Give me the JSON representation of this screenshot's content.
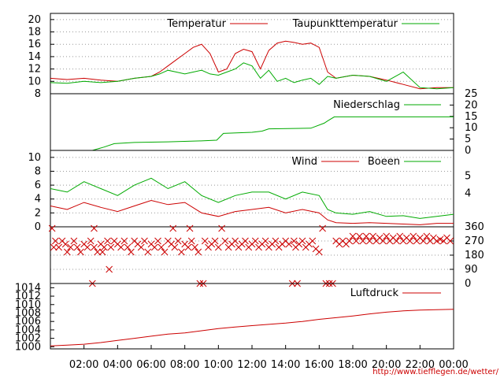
{
  "colors": {
    "series1": "#cc0000",
    "series2": "#00aa00",
    "grid": "#999999",
    "frame": "#000000",
    "url": "#cc0000"
  },
  "url_text": "http://www.tiefflegen.de/wetter/",
  "chart_data": [
    {
      "panel": "temperature",
      "type": "line",
      "ylim": [
        8,
        21
      ],
      "yticks_left": [
        "20",
        "18",
        "16",
        "14",
        "12",
        "10",
        "8"
      ],
      "grid": true,
      "legend_placement": "top",
      "series": [
        {
          "name": "Temperatur",
          "color": "#cc0000",
          "x": [
            0,
            1,
            2,
            3,
            4,
            5,
            6,
            6.5,
            7,
            7.5,
            8,
            8.5,
            9,
            9.5,
            10,
            10.5,
            11,
            11.5,
            12,
            12.5,
            13,
            13.5,
            14,
            14.5,
            15,
            15.5,
            16,
            16.5,
            17,
            18,
            19,
            20,
            21,
            22,
            23,
            24
          ],
          "y": [
            10.5,
            10.3,
            10.5,
            10.2,
            10.0,
            10.5,
            10.8,
            11.5,
            12.5,
            13.5,
            14.5,
            15.5,
            16.0,
            14.5,
            11.5,
            12.0,
            14.5,
            15.2,
            14.8,
            12.0,
            15.0,
            16.2,
            16.5,
            16.3,
            16.0,
            16.2,
            15.5,
            11.5,
            10.5,
            11.0,
            10.8,
            10.2,
            9.5,
            8.8,
            9.0,
            9.0
          ]
        },
        {
          "name": "Taupunkttemperatur",
          "color": "#00aa00",
          "x": [
            0,
            1,
            2,
            3,
            4,
            5,
            6,
            6.5,
            7,
            7.5,
            8,
            8.5,
            9,
            9.5,
            10,
            10.5,
            11,
            11.5,
            12,
            12.5,
            13,
            13.5,
            14,
            14.5,
            15,
            15.5,
            16,
            16.5,
            17,
            18,
            19,
            20,
            21,
            22,
            23,
            24
          ],
          "y": [
            9.8,
            9.7,
            10.0,
            9.8,
            10.0,
            10.5,
            10.8,
            11.2,
            11.8,
            11.5,
            11.2,
            11.5,
            11.8,
            11.2,
            11.0,
            11.5,
            12.0,
            13.0,
            12.5,
            10.5,
            11.8,
            10.0,
            10.5,
            9.8,
            10.2,
            10.5,
            9.5,
            10.8,
            10.5,
            11.0,
            10.8,
            10.0,
            11.5,
            9.0,
            8.8,
            9.0
          ]
        }
      ]
    },
    {
      "panel": "precipitation",
      "type": "line",
      "ylim": [
        0,
        25
      ],
      "yticks_right": [
        "25",
        "20",
        "15",
        "10",
        "5",
        "0"
      ],
      "grid": false,
      "legend_placement": "top-right",
      "series": [
        {
          "name": "Niederschlag",
          "color": "#00aa00",
          "x": [
            0,
            2.5,
            3.2,
            3.8,
            5,
            7,
            9,
            9.9,
            10.3,
            12,
            12.6,
            13.0,
            15.5,
            16.3,
            16.5,
            16.9,
            24
          ],
          "y": [
            0,
            0,
            1.5,
            3.0,
            3.5,
            3.8,
            4.2,
            4.5,
            7.5,
            8.0,
            8.5,
            9.5,
            9.8,
            12.0,
            13.0,
            14.8,
            14.8
          ]
        }
      ]
    },
    {
      "panel": "wind",
      "type": "line",
      "ylim": [
        0,
        11
      ],
      "yticks_left": [
        "10",
        "8",
        "6",
        "4",
        "2",
        "0"
      ],
      "yticks_right": [
        "5",
        "4"
      ],
      "grid": true,
      "legend_placement": "top-right",
      "series": [
        {
          "name": "Wind",
          "color": "#cc0000",
          "x": [
            0,
            1,
            2,
            3,
            4,
            5,
            6,
            7,
            8,
            9,
            10,
            11,
            12,
            13,
            14,
            15,
            16,
            16.5,
            17,
            18,
            19,
            20,
            21,
            22,
            23,
            24
          ],
          "y": [
            3.0,
            2.5,
            3.5,
            2.8,
            2.2,
            3.0,
            3.8,
            3.2,
            3.5,
            2.0,
            1.5,
            2.2,
            2.5,
            2.8,
            2.0,
            2.5,
            2.0,
            1.0,
            0.6,
            0.5,
            0.6,
            0.5,
            0.4,
            0.3,
            0.5,
            0.5
          ]
        },
        {
          "name": "Boeen",
          "color": "#00aa00",
          "x": [
            0,
            1,
            2,
            3,
            4,
            5,
            6,
            7,
            8,
            9,
            10,
            11,
            12,
            13,
            14,
            15,
            16,
            16.5,
            17,
            18,
            19,
            20,
            21,
            22,
            23,
            24
          ],
          "y": [
            5.5,
            5.0,
            6.5,
            5.5,
            4.5,
            6.0,
            7.0,
            5.5,
            6.5,
            4.5,
            3.5,
            4.5,
            5.0,
            5.0,
            4.0,
            5.0,
            4.5,
            2.5,
            2.0,
            1.8,
            2.2,
            1.5,
            1.6,
            1.2,
            1.5,
            1.8
          ]
        }
      ]
    },
    {
      "panel": "wind_direction",
      "type": "scatter",
      "ylim": [
        0,
        360
      ],
      "yticks_right": [
        "360",
        "270",
        "180",
        "90",
        "0"
      ],
      "grid": true,
      "color": "#cc0000",
      "marker": "x",
      "points": [
        [
          0.1,
          350
        ],
        [
          0.2,
          230
        ],
        [
          0.3,
          270
        ],
        [
          0.5,
          230
        ],
        [
          0.7,
          270
        ],
        [
          0.9,
          250
        ],
        [
          1.0,
          200
        ],
        [
          1.2,
          230
        ],
        [
          1.4,
          270
        ],
        [
          1.6,
          230
        ],
        [
          1.8,
          200
        ],
        [
          2.0,
          250
        ],
        [
          2.2,
          230
        ],
        [
          2.4,
          270
        ],
        [
          2.6,
          230
        ],
        [
          2.5,
          0
        ],
        [
          2.6,
          350
        ],
        [
          2.8,
          200
        ],
        [
          3.0,
          250
        ],
        [
          3.2,
          230
        ],
        [
          3.4,
          270
        ],
        [
          3.5,
          90
        ],
        [
          3.1,
          200
        ],
        [
          3.6,
          230
        ],
        [
          3.8,
          270
        ],
        [
          4.0,
          250
        ],
        [
          4.2,
          230
        ],
        [
          4.4,
          270
        ],
        [
          4.6,
          230
        ],
        [
          4.8,
          200
        ],
        [
          5.0,
          270
        ],
        [
          5.2,
          250
        ],
        [
          5.4,
          230
        ],
        [
          5.6,
          270
        ],
        [
          5.8,
          200
        ],
        [
          6.0,
          250
        ],
        [
          6.2,
          230
        ],
        [
          6.4,
          270
        ],
        [
          6.6,
          230
        ],
        [
          6.8,
          200
        ],
        [
          7.0,
          270
        ],
        [
          7.2,
          250
        ],
        [
          7.3,
          350
        ],
        [
          7.4,
          230
        ],
        [
          7.6,
          270
        ],
        [
          7.8,
          200
        ],
        [
          8.0,
          250
        ],
        [
          8.2,
          230
        ],
        [
          8.3,
          350
        ],
        [
          8.4,
          270
        ],
        [
          8.6,
          230
        ],
        [
          8.8,
          200
        ],
        [
          8.9,
          0
        ],
        [
          9.1,
          0
        ],
        [
          9.2,
          270
        ],
        [
          9.4,
          230
        ],
        [
          9.6,
          250
        ],
        [
          9.8,
          270
        ],
        [
          10.0,
          230
        ],
        [
          10.2,
          350
        ],
        [
          10.4,
          270
        ],
        [
          10.6,
          230
        ],
        [
          10.8,
          250
        ],
        [
          11.0,
          270
        ],
        [
          11.2,
          230
        ],
        [
          11.4,
          250
        ],
        [
          11.6,
          270
        ],
        [
          11.8,
          230
        ],
        [
          12.0,
          250
        ],
        [
          12.2,
          270
        ],
        [
          12.4,
          230
        ],
        [
          12.6,
          250
        ],
        [
          12.8,
          270
        ],
        [
          13.0,
          230
        ],
        [
          13.2,
          250
        ],
        [
          13.4,
          270
        ],
        [
          13.6,
          230
        ],
        [
          13.8,
          250
        ],
        [
          14.0,
          270
        ],
        [
          14.2,
          250
        ],
        [
          14.4,
          0
        ],
        [
          14.5,
          270
        ],
        [
          14.6,
          230
        ],
        [
          14.7,
          0
        ],
        [
          14.8,
          250
        ],
        [
          15.0,
          270
        ],
        [
          15.2,
          230
        ],
        [
          15.4,
          250
        ],
        [
          15.6,
          270
        ],
        [
          15.8,
          220
        ],
        [
          16.0,
          200
        ],
        [
          16.2,
          350
        ],
        [
          16.4,
          0
        ],
        [
          16.6,
          0
        ],
        [
          16.8,
          0
        ],
        [
          17.0,
          270
        ],
        [
          17.2,
          250
        ],
        [
          17.4,
          270
        ],
        [
          17.6,
          250
        ],
        [
          17.8,
          270
        ],
        [
          18.0,
          300
        ],
        [
          18.2,
          270
        ],
        [
          18.4,
          300
        ],
        [
          18.6,
          270
        ],
        [
          18.8,
          300
        ],
        [
          19.0,
          270
        ],
        [
          19.2,
          300
        ],
        [
          19.4,
          270
        ],
        [
          19.6,
          290
        ],
        [
          19.8,
          270
        ],
        [
          20.0,
          300
        ],
        [
          20.2,
          270
        ],
        [
          20.4,
          290
        ],
        [
          20.6,
          270
        ],
        [
          20.8,
          300
        ],
        [
          21.0,
          270
        ],
        [
          21.2,
          290
        ],
        [
          21.4,
          270
        ],
        [
          21.6,
          300
        ],
        [
          21.8,
          270
        ],
        [
          22.0,
          290
        ],
        [
          22.2,
          270
        ],
        [
          22.4,
          300
        ],
        [
          22.6,
          270
        ],
        [
          22.8,
          290
        ],
        [
          23.0,
          270
        ],
        [
          23.2,
          280
        ],
        [
          23.4,
          270
        ],
        [
          23.6,
          290
        ],
        [
          23.8,
          270
        ]
      ]
    },
    {
      "panel": "pressure",
      "type": "line",
      "ylim": [
        999.5,
        1015
      ],
      "yticks_left": [
        "1014",
        "1012",
        "1010",
        "1008",
        "1006",
        "1004",
        "1002",
        "1000"
      ],
      "grid": false,
      "legend_placement": "top-right",
      "series": [
        {
          "name": "Luftdruck",
          "color": "#cc0000",
          "x": [
            0,
            1,
            2,
            3,
            4,
            5,
            6,
            7,
            8,
            9,
            10,
            11,
            12,
            13,
            14,
            15,
            16,
            17,
            18,
            19,
            20,
            21,
            22,
            23,
            24
          ],
          "y": [
            1000.2,
            1000.4,
            1000.6,
            1001.0,
            1001.5,
            1002.0,
            1002.5,
            1003.0,
            1003.3,
            1003.8,
            1004.3,
            1004.7,
            1005.0,
            1005.3,
            1005.6,
            1006.0,
            1006.5,
            1006.9,
            1007.3,
            1007.8,
            1008.2,
            1008.5,
            1008.7,
            1008.8,
            1008.9
          ]
        }
      ]
    }
  ],
  "x_axis": {
    "range": [
      0,
      24
    ],
    "tick_labels": [
      {
        "x": 2,
        "label": "02:00"
      },
      {
        "x": 4,
        "label": "04:00"
      },
      {
        "x": 6,
        "label": "06:00"
      },
      {
        "x": 8,
        "label": "08:00"
      },
      {
        "x": 10,
        "label": "10:00"
      },
      {
        "x": 12,
        "label": "12:00"
      },
      {
        "x": 14,
        "label": "14:00"
      },
      {
        "x": 16,
        "label": "16:00"
      },
      {
        "x": 18,
        "label": "18:00"
      },
      {
        "x": 20,
        "label": "20:00"
      },
      {
        "x": 22,
        "label": "22:00"
      },
      {
        "x": 24,
        "label": "00:00"
      }
    ]
  }
}
